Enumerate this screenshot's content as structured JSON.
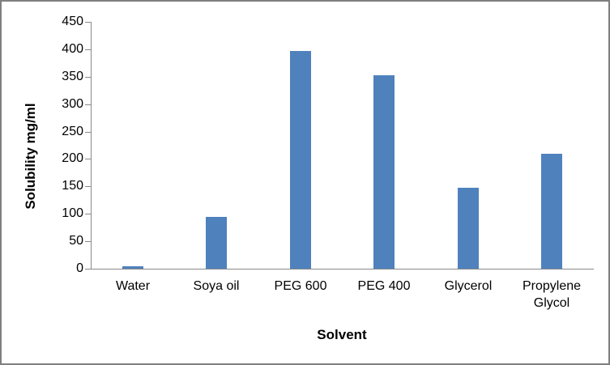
{
  "chart_data": {
    "type": "bar",
    "categories": [
      "Water",
      "Soya oil",
      "PEG 600",
      "PEG 400",
      "Glycerol",
      "Propylene Glycol"
    ],
    "values": [
      4,
      95,
      397,
      352,
      148,
      210
    ],
    "title": "",
    "xlabel": "Solvent",
    "ylabel": "Solubility mg/ml",
    "ylim": [
      0,
      450
    ],
    "ytick_step": 50,
    "ytick_labels": [
      "0",
      "50",
      "100",
      "150",
      "200",
      "250",
      "300",
      "350",
      "400",
      "450"
    ],
    "bar_color": "#4F81BD",
    "axis_color": "#8a8a8a",
    "frame_color": "#7f7f7f",
    "grid": false,
    "legend_position": "none"
  }
}
